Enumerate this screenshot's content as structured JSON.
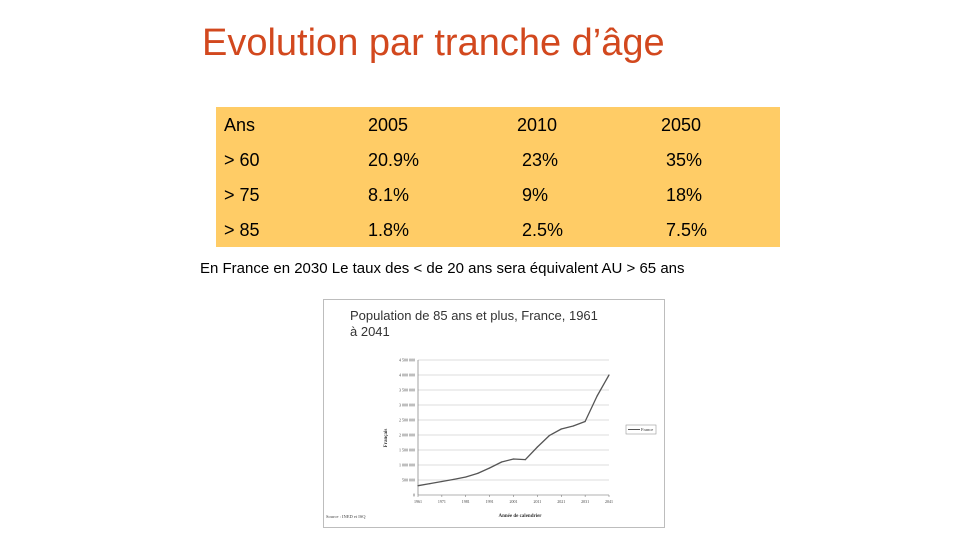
{
  "slide": {
    "title": "Evolution par tranche d’âge",
    "note": "En France  en 2030  Le taux des < de 20 ans sera équivalent AU > 65 ans"
  },
  "table": {
    "header": [
      "Ans",
      "2005",
      "2010",
      "2050"
    ],
    "rows": [
      [
        "> 60",
        "20.9%",
        "23%",
        "35%"
      ],
      [
        "> 75",
        "8.1%",
        "9%",
        "18%"
      ],
      [
        "> 85",
        "1.8%",
        "2.5%",
        "7.5%"
      ]
    ]
  },
  "colors": {
    "title": "#d2481e",
    "table_bg": "#ffcc66",
    "line": "#555555"
  },
  "chart_data": {
    "type": "line",
    "title": "Population de 85 ans et plus, France, 1961 à 2041",
    "title_lines": [
      "Population de 85 ans et plus, France, 1961",
      "à 2041"
    ],
    "xlabel": "Année de calendrier",
    "ylabel": "Français",
    "source": "Source : INED et ISQ",
    "legend": "France",
    "x_ticks": [
      "1961",
      "1971",
      "1981",
      "1991",
      "2001",
      "2011",
      "2021",
      "2031",
      "2041"
    ],
    "y_ticks": [
      "0",
      "500 000",
      "1 000 000",
      "1 500 000",
      "2 000 000",
      "2 500 000",
      "3 000 000",
      "3 500 000",
      "4 000 000",
      "4 500 000"
    ],
    "ylim": [
      0,
      4500000
    ],
    "xlim": [
      1961,
      2041
    ],
    "series": [
      {
        "name": "France",
        "x": [
          1961,
          1966,
          1971,
          1976,
          1981,
          1986,
          1991,
          1996,
          2001,
          2006,
          2011,
          2016,
          2021,
          2026,
          2031,
          2036,
          2041
        ],
        "values": [
          310000,
          380000,
          450000,
          520000,
          600000,
          720000,
          900000,
          1100000,
          1200000,
          1180000,
          1600000,
          1980000,
          2200000,
          2300000,
          2450000,
          3300000,
          4000000
        ]
      }
    ]
  }
}
